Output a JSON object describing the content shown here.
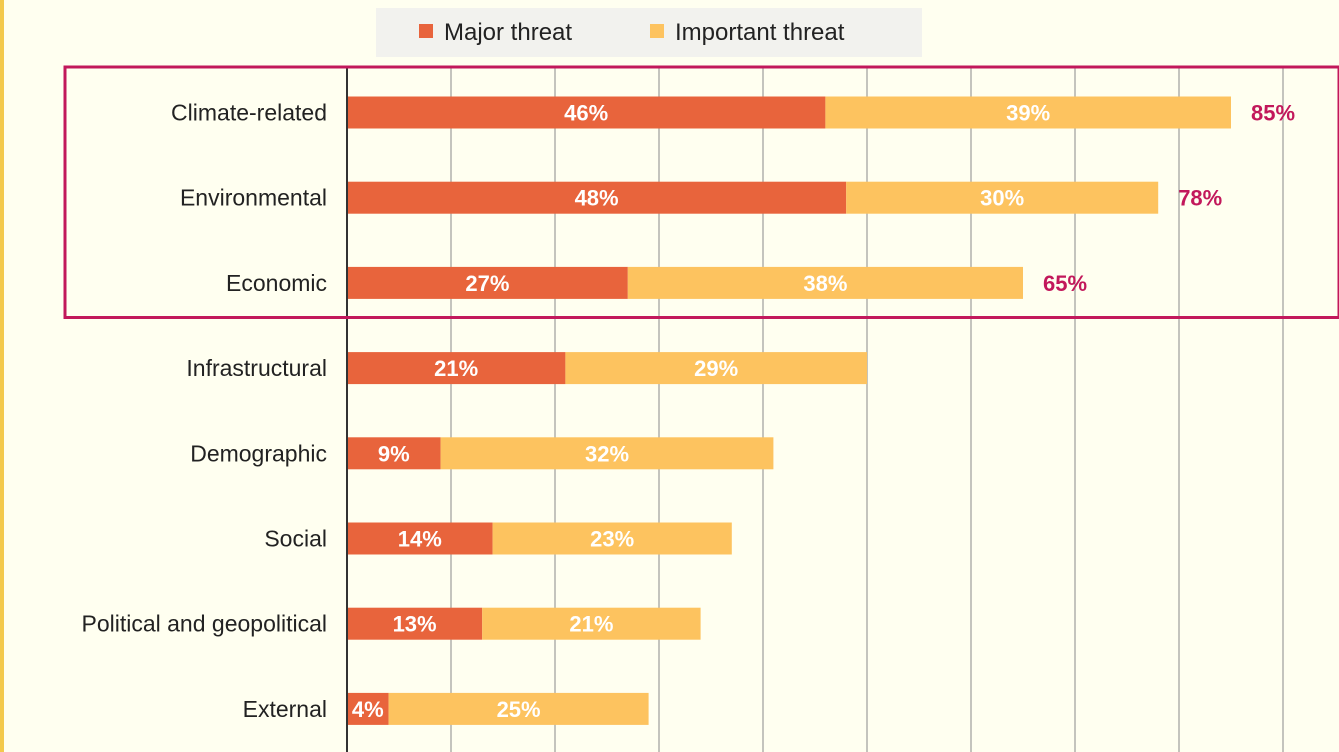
{
  "chart_data": {
    "type": "bar",
    "orientation": "horizontal",
    "stacked": true,
    "categories": [
      "Climate-related",
      "Environmental",
      "Economic",
      "Infrastructural",
      "Demographic",
      "Social",
      "Political and geopolitical",
      "External"
    ],
    "series": [
      {
        "name": "Major threat",
        "color": "#e8643c",
        "values": [
          46,
          48,
          27,
          21,
          9,
          14,
          13,
          4
        ]
      },
      {
        "name": "Important threat",
        "color": "#fdc35f",
        "values": [
          39,
          30,
          38,
          29,
          32,
          23,
          21,
          25
        ]
      }
    ],
    "value_labels": {
      "series": [
        [
          "46%",
          "48%",
          "27%",
          "21%",
          "9%",
          "14%",
          "13%",
          "4%"
        ],
        [
          "39%",
          "30%",
          "38%",
          "29%",
          "32%",
          "23%",
          "21%",
          "25%"
        ]
      ],
      "totals": [
        "85%",
        "78%",
        "65%"
      ]
    },
    "highlight": {
      "categories": [
        "Climate-related",
        "Environmental",
        "Economic"
      ],
      "color": "#c2185b"
    },
    "xlim": [
      0,
      95
    ],
    "grid": true,
    "legend_position": "top",
    "total_label_color": "#c2185b",
    "bar_label_color": "#ffffff"
  }
}
